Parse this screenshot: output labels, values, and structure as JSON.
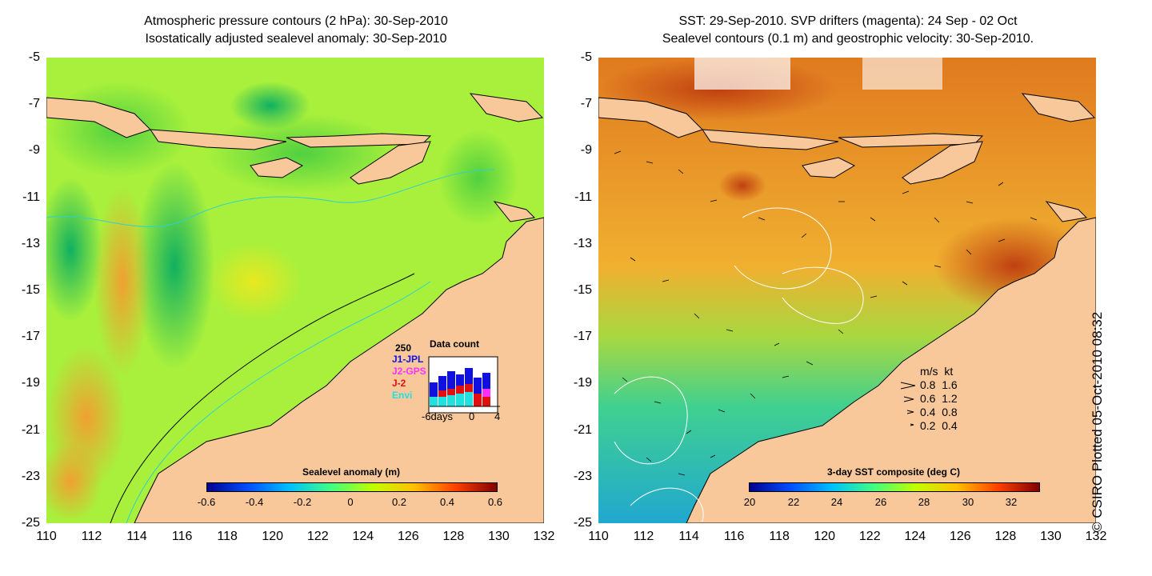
{
  "left_panel": {
    "title_line1": "Atmospheric pressure contours (2 hPa): 30-Sep-2010",
    "title_line2": "Isostatically adjusted sealevel anomaly: 30-Sep-2010",
    "colorbar_label": "Sealevel anomaly (m)",
    "colorbar_ticks": [
      "-0.6",
      "-0.4",
      "-0.2",
      "0",
      "0.2",
      "0.4",
      "0.6"
    ],
    "colorbar_colors": [
      "#00008f",
      "#0050ff",
      "#00c0ff",
      "#40ff80",
      "#c0ff00",
      "#ffc000",
      "#ff4000",
      "#800000"
    ],
    "data_count": {
      "title": "Data count",
      "max_label": "250",
      "series": [
        {
          "name": "J1-JPL",
          "color": "#1010e0"
        },
        {
          "name": "J2-GPS",
          "color": "#ff30ff"
        },
        {
          "name": "J-2",
          "color": "#e01010"
        },
        {
          "name": "Envi",
          "color": "#20e0e0"
        }
      ],
      "x_labels": [
        "-6days",
        "0",
        "4"
      ]
    }
  },
  "right_panel": {
    "title_line1": "SST: 29-Sep-2010. SVP drifters (magenta): 24 Sep - 02 Oct",
    "title_line2": "Sealevel contours (0.1 m) and geostrophic velocity: 30-Sep-2010.",
    "colorbar_label": "3-day SST composite (deg C)",
    "colorbar_ticks": [
      "20",
      "22",
      "24",
      "26",
      "28",
      "30",
      "32"
    ],
    "velocity_legend": {
      "header": "m/s  kt",
      "rows": [
        "0.8  1.6",
        "0.6  1.2",
        "0.4  0.8",
        "0.2  0.4"
      ]
    }
  },
  "axes": {
    "y_ticks": [
      "-5",
      "-7",
      "-9",
      "-11",
      "-13",
      "-15",
      "-17",
      "-19",
      "-21",
      "-23",
      "-25"
    ],
    "x_ticks": [
      "110",
      "112",
      "114",
      "116",
      "118",
      "120",
      "122",
      "124",
      "126",
      "128",
      "130",
      "132"
    ]
  },
  "credit": "© CSIRO Plotted 05-Oct-2010 08:32",
  "colors": {
    "land": "#f8c89a",
    "ocean_anomaly": "#a8f03c",
    "sst_warm": "#f0a020",
    "sst_cool": "#40d890"
  }
}
